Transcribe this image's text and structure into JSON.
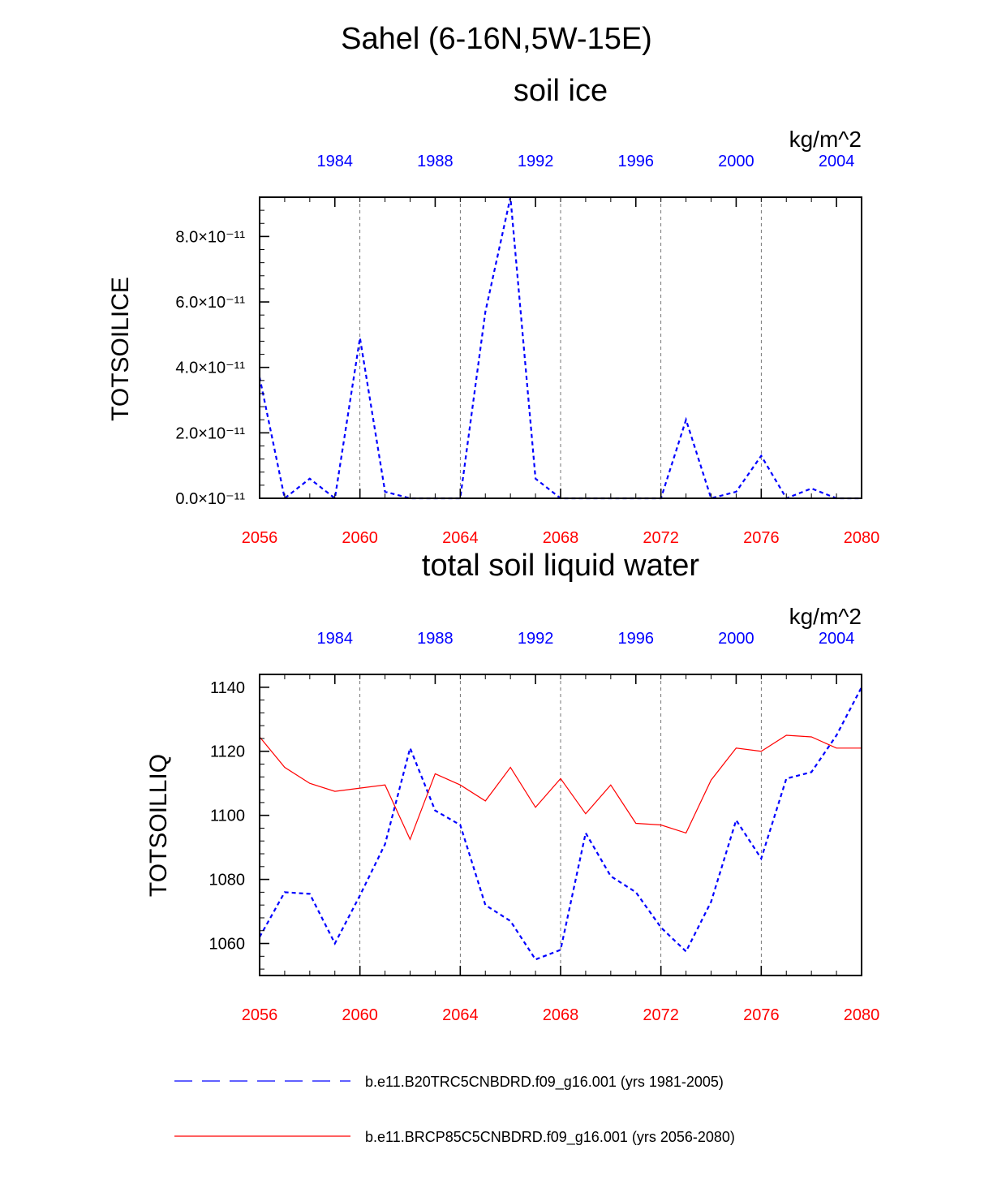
{
  "figure": {
    "main_title": "Sahel (6-16N,5W-15E)",
    "legend": [
      {
        "label": "b.e11.B20TRC5CNBDRD.f09_g16.001 (yrs 1981-2005)",
        "color": "#0000ff",
        "style": "dashed"
      },
      {
        "label": "b.e11.BRCP85C5CNBDRD.f09_g16.001 (yrs 2056-2080)",
        "color": "#ff0000",
        "style": "solid"
      }
    ]
  },
  "chart_data": [
    {
      "type": "line",
      "title": "soil ice",
      "ylabel": "TOTSOILICE",
      "units": "kg/m^2",
      "y_tick_labels": [
        "0.0×10⁻¹¹",
        "2.0×10⁻¹¹",
        "4.0×10⁻¹¹",
        "6.0×10⁻¹¹",
        "8.0×10⁻¹¹"
      ],
      "y_ticks": [
        0,
        2e-11,
        4e-11,
        6e-11,
        8e-11
      ],
      "ylim": [
        0,
        9.2e-11
      ],
      "bottom_x_ticks": [
        "2056",
        "2060",
        "2064",
        "2068",
        "2072",
        "2076",
        "2080"
      ],
      "top_x_ticks": [
        "1984",
        "1988",
        "1992",
        "1996",
        "2000",
        "2004"
      ],
      "xlim_bottom": [
        2056,
        2080
      ],
      "xlim_top": [
        1981,
        2005
      ],
      "series": [
        {
          "name": "b.e11.B20TRC5CNBDRD.f09_g16.001 (yrs 1981-2005)",
          "color": "#0000ff",
          "style": "dashed",
          "axis": "top",
          "x": [
            1981,
            1982,
            1983,
            1984,
            1985,
            1986,
            1987,
            1988,
            1989,
            1990,
            1991,
            1992,
            1993,
            1994,
            1995,
            1996,
            1997,
            1998,
            1999,
            2000,
            2001,
            2002,
            2003,
            2004,
            2005
          ],
          "values": [
            3.7e-11,
            0.0,
            6e-12,
            0.0,
            4.9e-11,
            2e-12,
            0.0,
            0.0,
            0.0,
            5.7e-11,
            9.2e-11,
            6e-12,
            0.0,
            0.0,
            0.0,
            0.0,
            0.0,
            2.4e-11,
            0.0,
            2e-12,
            1.3e-11,
            0.0,
            3e-12,
            0.0,
            0.0
          ]
        }
      ]
    },
    {
      "type": "line",
      "title": "total soil liquid water",
      "ylabel": "TOTSOILLIQ",
      "units": "kg/m^2",
      "y_tick_labels": [
        "1060",
        "1080",
        "1100",
        "1120",
        "1140"
      ],
      "y_ticks": [
        1060,
        1080,
        1100,
        1120,
        1140
      ],
      "ylim": [
        1050,
        1144
      ],
      "bottom_x_ticks": [
        "2056",
        "2060",
        "2064",
        "2068",
        "2072",
        "2076",
        "2080"
      ],
      "top_x_ticks": [
        "1984",
        "1988",
        "1992",
        "1996",
        "2000",
        "2004"
      ],
      "xlim_bottom": [
        2056,
        2080
      ],
      "xlim_top": [
        1981,
        2005
      ],
      "series": [
        {
          "name": "b.e11.B20TRC5CNBDRD.f09_g16.001 (yrs 1981-2005)",
          "color": "#0000ff",
          "style": "dashed",
          "axis": "top",
          "x": [
            1981,
            1982,
            1983,
            1984,
            1985,
            1986,
            1987,
            1988,
            1989,
            1990,
            1991,
            1992,
            1993,
            1994,
            1995,
            1996,
            1997,
            1998,
            1999,
            2000,
            2001,
            2002,
            2003,
            2004,
            2005
          ],
          "values": [
            1062,
            1076,
            1075.5,
            1060,
            1075,
            1091,
            1121,
            1101.5,
            1097,
            1072,
            1067,
            1055,
            1058,
            1094.5,
            1081,
            1076,
            1065,
            1057.5,
            1073,
            1098.5,
            1086.5,
            1111.5,
            1113.5,
            1125,
            1140
          ]
        },
        {
          "name": "b.e11.BRCP85C5CNBDRD.f09_g16.001 (yrs 2056-2080)",
          "color": "#ff0000",
          "style": "solid",
          "axis": "bottom",
          "x": [
            2056,
            2057,
            2058,
            2059,
            2060,
            2061,
            2062,
            2063,
            2064,
            2065,
            2066,
            2067,
            2068,
            2069,
            2070,
            2071,
            2072,
            2073,
            2074,
            2075,
            2076,
            2077,
            2078,
            2079,
            2080
          ],
          "values": [
            1124.5,
            1115,
            1110,
            1107.5,
            1108.5,
            1109.5,
            1092.5,
            1113,
            1109.5,
            1104.5,
            1115,
            1102.5,
            1111.5,
            1100.5,
            1109.5,
            1097.5,
            1097,
            1094.5,
            1111,
            1121,
            1120,
            1125,
            1124.5,
            1121,
            1121
          ]
        }
      ]
    }
  ]
}
